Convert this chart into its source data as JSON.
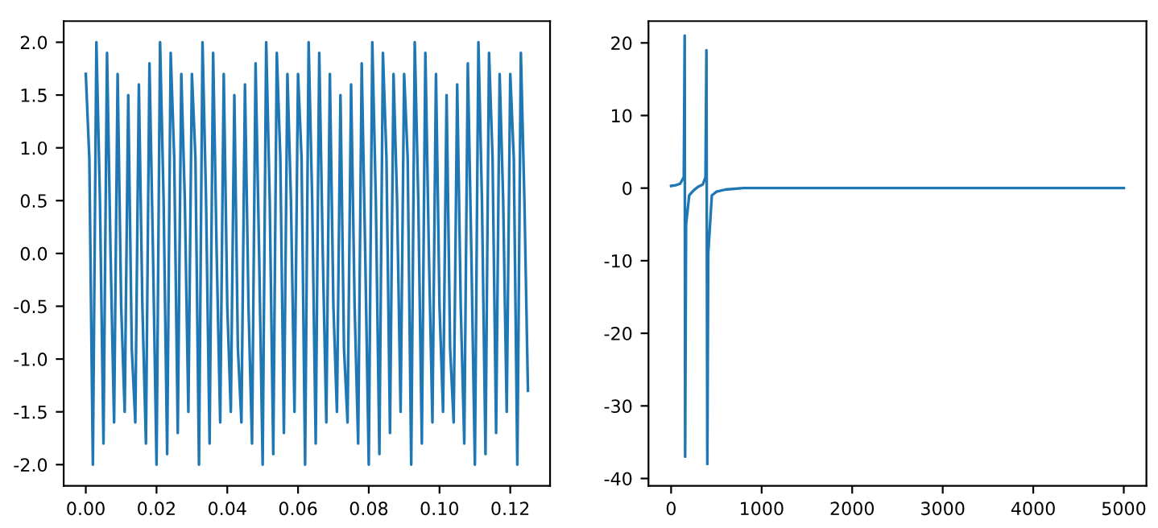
{
  "chart_data": [
    {
      "type": "line",
      "x": [
        0.0,
        0.001,
        0.002,
        0.003,
        0.004,
        0.005,
        0.006,
        0.007,
        0.008,
        0.009,
        0.01,
        0.011,
        0.012,
        0.013,
        0.014,
        0.015,
        0.016,
        0.017,
        0.018,
        0.019,
        0.02,
        0.021,
        0.022,
        0.023,
        0.024,
        0.025,
        0.026,
        0.027,
        0.028,
        0.029,
        0.03,
        0.031,
        0.032,
        0.033,
        0.034,
        0.035,
        0.036,
        0.037,
        0.038,
        0.039,
        0.04,
        0.041,
        0.042,
        0.043,
        0.044,
        0.045,
        0.046,
        0.047,
        0.048,
        0.049,
        0.05,
        0.051,
        0.052,
        0.053,
        0.054,
        0.055,
        0.056,
        0.057,
        0.058,
        0.059,
        0.06,
        0.061,
        0.062,
        0.063,
        0.064,
        0.065,
        0.066,
        0.067,
        0.068,
        0.069,
        0.07,
        0.071,
        0.072,
        0.073,
        0.074,
        0.075,
        0.076,
        0.077,
        0.078,
        0.079,
        0.08,
        0.081,
        0.082,
        0.083,
        0.084,
        0.085,
        0.086,
        0.087,
        0.088,
        0.089,
        0.09,
        0.091,
        0.092,
        0.093,
        0.094,
        0.095,
        0.096,
        0.097,
        0.098,
        0.099,
        0.1,
        0.101,
        0.102,
        0.103,
        0.104,
        0.105,
        0.106,
        0.107,
        0.108,
        0.109,
        0.11,
        0.111,
        0.112,
        0.113,
        0.114,
        0.115,
        0.116,
        0.117,
        0.118,
        0.119,
        0.12,
        0.121,
        0.122,
        0.123,
        0.124,
        0.125
      ],
      "series": [
        {
          "color": "#1f77b4",
          "values": [
            1.7,
            0.9,
            -2.0,
            2.0,
            0.5,
            -1.8,
            1.9,
            0.0,
            -1.6,
            1.7,
            -0.5,
            -1.5,
            1.5,
            -0.9,
            -1.6,
            1.6,
            -0.5,
            -1.8,
            1.8,
            0.0,
            -2.0,
            2.0,
            0.5,
            -1.9,
            1.9,
            0.9,
            -1.7,
            1.7,
            0.5,
            -1.5,
            1.7,
            0.9,
            -2.0,
            2.0,
            0.5,
            -1.8,
            1.9,
            0.0,
            -1.6,
            1.7,
            -0.5,
            -1.5,
            1.5,
            -0.9,
            -1.6,
            1.6,
            -0.5,
            -1.8,
            1.8,
            0.0,
            -2.0,
            2.0,
            0.5,
            -1.9,
            1.9,
            0.9,
            -1.7,
            1.7,
            0.5,
            -1.5,
            1.7,
            0.9,
            -2.0,
            2.0,
            0.5,
            -1.8,
            1.9,
            0.0,
            -1.6,
            1.7,
            -0.5,
            -1.5,
            1.5,
            -0.9,
            -1.6,
            1.6,
            -0.5,
            -1.8,
            1.8,
            0.0,
            -2.0,
            2.0,
            0.5,
            -1.9,
            1.9,
            0.9,
            -1.7,
            1.7,
            0.5,
            -1.5,
            1.7,
            0.9,
            -2.0,
            2.0,
            0.5,
            -1.8,
            1.9,
            0.0,
            -1.6,
            1.7,
            -0.5,
            -1.5,
            1.5,
            -0.9,
            -1.6,
            1.6,
            -0.5,
            -1.8,
            1.8,
            0.0,
            -2.0,
            2.0,
            0.5,
            -1.9,
            1.9,
            0.9,
            -1.7,
            1.7,
            0.5,
            -1.5,
            1.7,
            0.9,
            -2.0,
            1.9,
            0.5,
            -1.3
          ]
        }
      ],
      "xlim": [
        -0.00625,
        0.13125
      ],
      "ylim": [
        -2.2,
        2.2
      ],
      "xticks": [
        {
          "value": 0.0,
          "label": "0.00"
        },
        {
          "value": 0.02,
          "label": "0.02"
        },
        {
          "value": 0.04,
          "label": "0.04"
        },
        {
          "value": 0.06,
          "label": "0.06"
        },
        {
          "value": 0.08,
          "label": "0.08"
        },
        {
          "value": 0.1,
          "label": "0.10"
        },
        {
          "value": 0.12,
          "label": "0.12"
        }
      ],
      "yticks": [
        {
          "value": -2,
          "label": "-2.0"
        },
        -1.5,
        {
          "value": -1,
          "label": "-1.0"
        },
        -0.5,
        {
          "value": 0,
          "label": "0.0"
        },
        0.5,
        {
          "value": 1,
          "label": "1.0"
        },
        1.5,
        {
          "value": 2,
          "label": "2.0"
        }
      ],
      "grid": false,
      "legend": false,
      "line_style": "solid",
      "marker": "none"
    },
    {
      "type": "line",
      "x": [
        0,
        50,
        100,
        140,
        150,
        155,
        165,
        200,
        250,
        300,
        350,
        380,
        390,
        400,
        410,
        450,
        500,
        600,
        800,
        1000,
        2000,
        3000,
        4000,
        5000
      ],
      "series": [
        {
          "color": "#1f77b4",
          "values": [
            0.3,
            0.4,
            0.6,
            1.5,
            21,
            -37,
            -5,
            -1,
            -0.3,
            0.2,
            0.5,
            1.5,
            19,
            -38,
            -9,
            -1,
            -0.5,
            -0.2,
            0,
            0,
            0,
            0,
            0,
            0
          ]
        }
      ],
      "xlim": [
        -250,
        5250
      ],
      "ylim": [
        -41,
        23
      ],
      "xticks": [
        0,
        1000,
        2000,
        3000,
        4000,
        5000
      ],
      "yticks": [
        -40,
        -30,
        -20,
        -10,
        0,
        10,
        20
      ],
      "grid": false,
      "legend": false,
      "line_style": "solid",
      "marker": "none"
    }
  ]
}
